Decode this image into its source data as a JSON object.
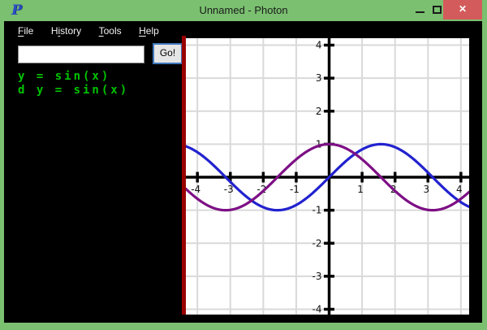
{
  "window": {
    "title": "Unnamed - Photon",
    "icon_letter": "P",
    "close_glyph": "✕"
  },
  "colors": {
    "titlebar_green": "#7AC070",
    "close_red": "#D45B5B",
    "content_bg": "#000000",
    "console_green": "#00C400",
    "red_edge_line": "#990000",
    "go_focus_border": "#3F77BB"
  },
  "menu": {
    "items": [
      {
        "pre": "",
        "key": "F",
        "post": "ile"
      },
      {
        "pre": "H",
        "key": "i",
        "post": "story"
      },
      {
        "pre": "",
        "key": "T",
        "post": "ools"
      },
      {
        "pre": "",
        "key": "H",
        "post": "elp"
      }
    ]
  },
  "input": {
    "value": "",
    "placeholder": ""
  },
  "go_button": {
    "label": "Go!"
  },
  "expressions": [
    {
      "text": "y = sin(x)"
    },
    {
      "text": "d y = sin(x)"
    }
  ],
  "chart_data": {
    "type": "line",
    "title": "",
    "xlabel": "",
    "ylabel": "",
    "xlim": [
      -4.35,
      4.25
    ],
    "ylim": [
      -4.16,
      4.21
    ],
    "grid": true,
    "grid_step": 1,
    "grid_color": "#D9D9D9",
    "axis_color": "#000000",
    "tick_label_color": "#111111",
    "x_tick_labels": [
      -4,
      -3,
      -2,
      -1,
      1,
      2,
      3,
      4
    ],
    "y_tick_labels": [
      -4,
      -3,
      -2,
      -1,
      1,
      2,
      3,
      4
    ],
    "legend_position": "none",
    "series": [
      {
        "name": "y = sin(x)",
        "fn": "sin",
        "amplitude": 1,
        "color": "#2222CF"
      },
      {
        "name": "d y = sin(x)",
        "fn": "cos",
        "amplitude": 1,
        "color": "#7D0F85"
      }
    ]
  }
}
